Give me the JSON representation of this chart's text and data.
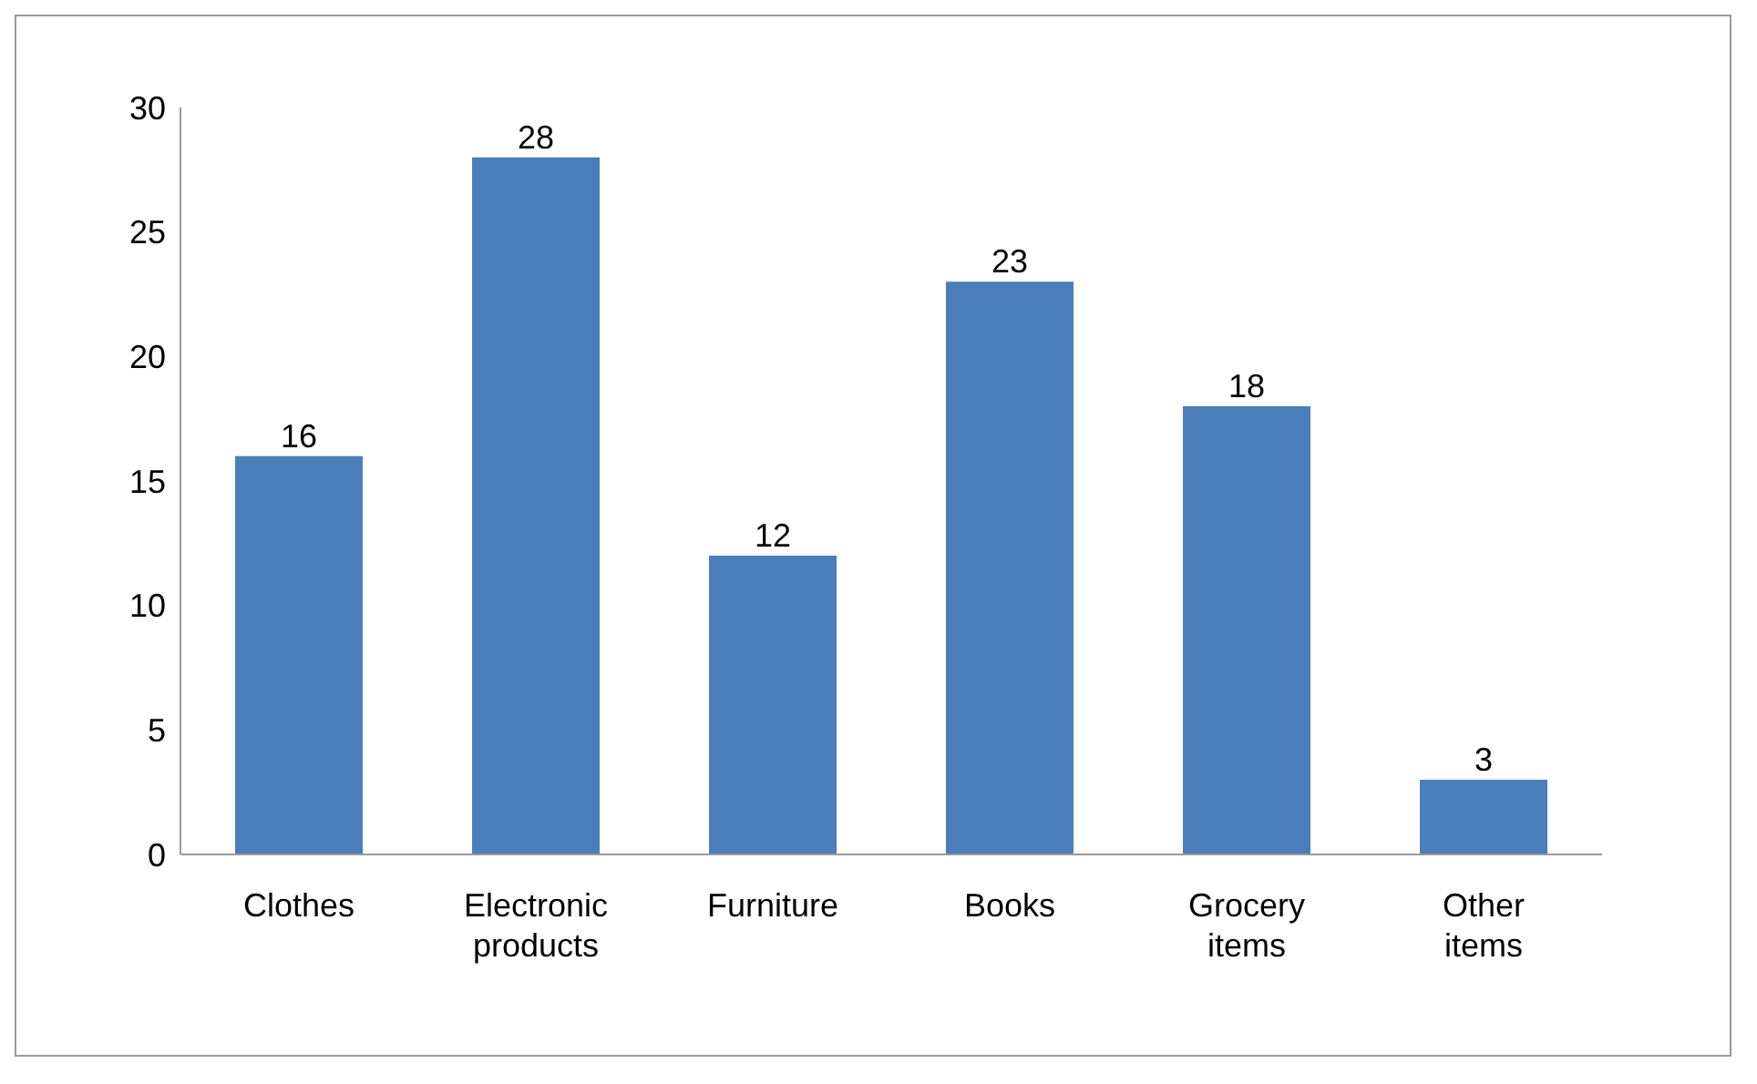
{
  "chart_data": {
    "type": "bar",
    "categories": [
      "Clothes",
      "Electronic products",
      "Furniture",
      "Books",
      "Grocery items",
      "Other items"
    ],
    "values": [
      16,
      28,
      12,
      23,
      18,
      3
    ],
    "color": "#4a7ebb",
    "ylim": [
      0,
      30
    ],
    "yticks": [
      0,
      5,
      10,
      15,
      20,
      25,
      30
    ],
    "grid": false,
    "legend": false,
    "data_labels": true
  }
}
